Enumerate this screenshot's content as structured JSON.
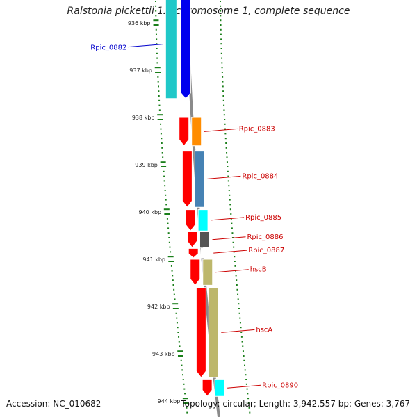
{
  "title": "Ralstonia pickettii 12J chromosome 1, complete sequence",
  "accession": "Accession: NC_010682",
  "topology": "Topology: circular; Length: 3,942,557 bp; Genes: 3,767",
  "colors": {
    "backbone": "#8a8a8a",
    "tick": "#1a7f1a",
    "cds_forward": "#0000ee",
    "cds_reverse": "#ff0000",
    "cog_dark_blue": "#00008b",
    "cog_cyan": "#00c8c8",
    "label_forward": "#0000cc",
    "label_reverse": "#cc0000"
  },
  "scale_labels": [
    "936 kbp",
    "937 kbp",
    "938 kbp",
    "939 kbp",
    "940 kbp",
    "941 kbp",
    "942 kbp",
    "943 kbp",
    "944 kbp"
  ],
  "genes": [
    {
      "name": "Rpic_0882",
      "strand": "forward",
      "start_kbp": 935.3,
      "end_kbp": 937.6,
      "category_color": "#20c8c8"
    },
    {
      "name": "Rpic_0883",
      "strand": "reverse",
      "start_kbp": 938.0,
      "end_kbp": 938.6,
      "category_color": "#ff8c00"
    },
    {
      "name": "Rpic_0884",
      "strand": "reverse",
      "start_kbp": 938.7,
      "end_kbp": 939.9,
      "category_color": "#4682b4"
    },
    {
      "name": "Rpic_0885",
      "strand": "reverse",
      "start_kbp": 939.95,
      "end_kbp": 940.4,
      "category_color": "#00ffff"
    },
    {
      "name": "Rpic_0886",
      "strand": "reverse",
      "start_kbp": 940.42,
      "end_kbp": 940.75,
      "category_color": "#555555"
    },
    {
      "name": "Rpic_0887",
      "strand": "reverse",
      "start_kbp": 940.77,
      "end_kbp": 940.97,
      "category_color": "#ffffff"
    },
    {
      "name": "hscB",
      "strand": "reverse",
      "start_kbp": 941.0,
      "end_kbp": 941.55,
      "category_color": "#bdb76b"
    },
    {
      "name": "hscA",
      "strand": "reverse",
      "start_kbp": 941.6,
      "end_kbp": 943.5,
      "category_color": "#bdb76b"
    },
    {
      "name": "Rpic_0890",
      "strand": "reverse",
      "start_kbp": 943.55,
      "end_kbp": 943.9,
      "category_color": "#00ffff"
    }
  ]
}
